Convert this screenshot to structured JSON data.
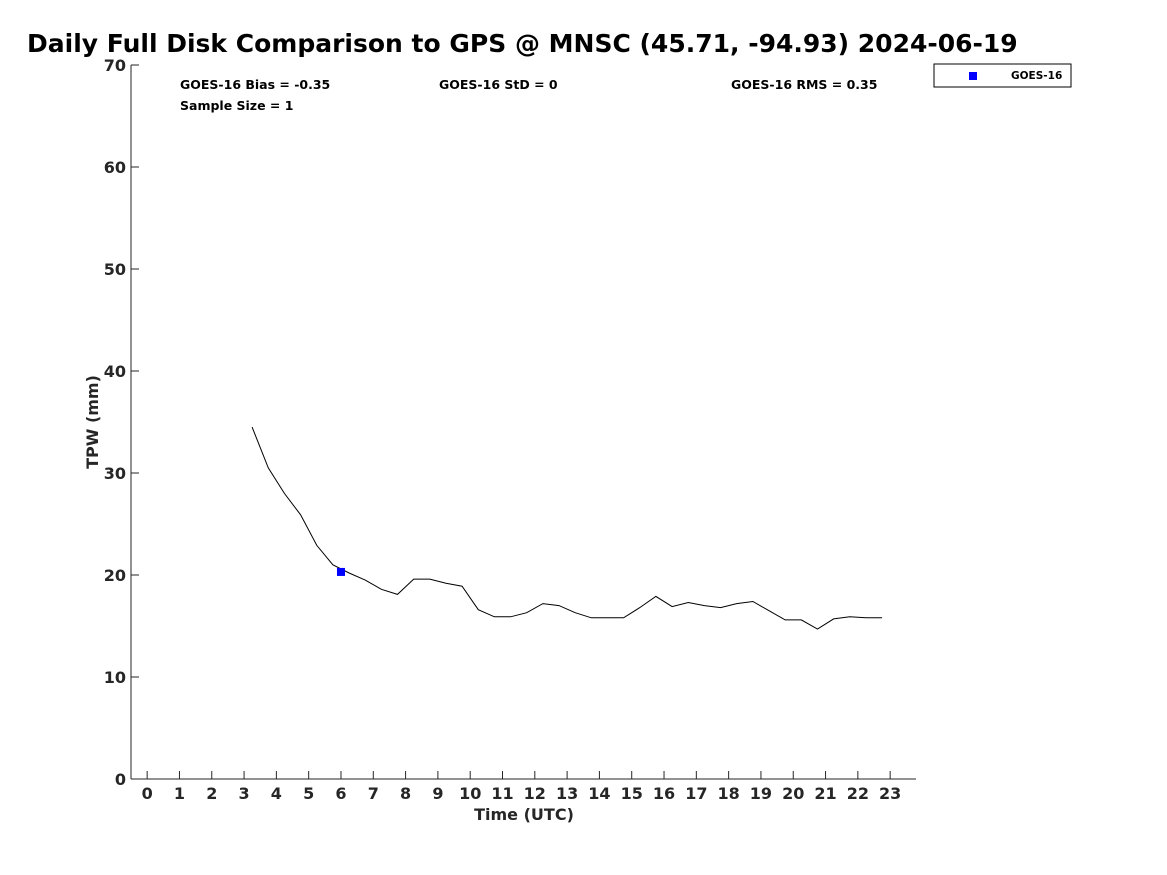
{
  "chart_data": {
    "type": "line",
    "title": "Daily Full Disk Comparison to GPS @ MNSC (45.71, -94.93) 2024-06-19",
    "xlabel": "Time (UTC)",
    "ylabel": "TPW (mm)",
    "xlim": [
      -0.5,
      23.8
    ],
    "ylim": [
      0,
      70
    ],
    "xticks": [
      "0",
      "1",
      "2",
      "3",
      "4",
      "5",
      "6",
      "7",
      "8",
      "9",
      "10",
      "11",
      "12",
      "13",
      "14",
      "15",
      "16",
      "17",
      "18",
      "19",
      "20",
      "21",
      "22",
      "23"
    ],
    "yticks": [
      "0",
      "10",
      "20",
      "30",
      "40",
      "50",
      "60",
      "70"
    ],
    "grid": false,
    "legend_position": "top-right",
    "stats": {
      "bias": "GOES-16 Bias = -0.35",
      "std": "GOES-16 StD = 0",
      "rms": "GOES-16 RMS = 0.35",
      "sample_size": "Sample Size = 1"
    },
    "series": [
      {
        "style": "line",
        "color": "#000000",
        "x": [
          3.25,
          3.75,
          4.25,
          4.75,
          5.25,
          5.75,
          6.25,
          6.75,
          7.25,
          7.75,
          8.25,
          8.75,
          9.25,
          9.75,
          10.25,
          10.75,
          11.25,
          11.75,
          12.25,
          12.75,
          13.25,
          13.75,
          14.25,
          14.75,
          15.25,
          15.75,
          16.25,
          16.75,
          17.25,
          17.75,
          18.25,
          18.75,
          19.25,
          19.75,
          20.25,
          20.75,
          21.25,
          21.75,
          22.25,
          22.75
        ],
        "y": [
          34.5,
          30.5,
          28.0,
          25.9,
          22.9,
          21.0,
          20.2,
          19.5,
          18.6,
          18.1,
          19.6,
          19.6,
          19.2,
          18.9,
          16.6,
          15.9,
          15.9,
          16.3,
          17.2,
          17.0,
          16.3,
          15.8,
          15.8,
          15.8,
          16.8,
          17.9,
          16.9,
          17.3,
          17.0,
          16.8,
          17.2,
          17.4,
          16.5,
          15.6,
          15.6,
          14.7,
          15.7,
          15.9,
          15.8,
          15.8
        ]
      },
      {
        "name": "GOES-16",
        "style": "marker",
        "color": "#0000ff",
        "x": [
          6.0
        ],
        "y": [
          20.3
        ]
      }
    ]
  }
}
